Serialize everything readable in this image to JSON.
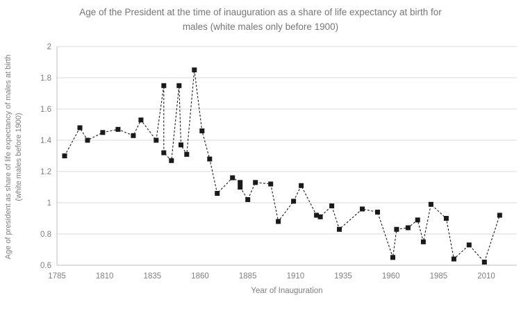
{
  "title": {
    "line1": "Age of the President at the time of inauguration as a share of life expectancy at birth for",
    "line2": "males (white males only before 1900)"
  },
  "chart_data": {
    "type": "line",
    "title": "Age of the President at the time of inauguration as a share of life expectancy at birth for males (white males only before 1900)",
    "xlabel": "Year of Inauguration",
    "ylabel_line1": "Age of president  as share of life expectancy of males at birth",
    "ylabel_line2": "(white males  before 1900)",
    "xlim": [
      1785,
      2026
    ],
    "ylim": [
      0.6,
      2.0
    ],
    "x_ticks": [
      "1785",
      "1810",
      "1835",
      "1860",
      "1885",
      "1910",
      "1935",
      "1960",
      "1985",
      "2010"
    ],
    "y_ticks": [
      "2",
      "1.8",
      "1.6",
      "1.4",
      "1.2",
      "1",
      "0.8",
      "0.6"
    ],
    "grid": "horizontal-only",
    "legend": "none",
    "line_style": "dashed",
    "marker_style": "filled-square",
    "points": [
      [
        1789,
        1.3
      ],
      [
        1797,
        1.48
      ],
      [
        1801,
        1.4
      ],
      [
        1809,
        1.45
      ],
      [
        1817,
        1.47
      ],
      [
        1825,
        1.43
      ],
      [
        1829,
        1.53
      ],
      [
        1837,
        1.4
      ],
      [
        1841,
        1.75
      ],
      [
        1841,
        1.32
      ],
      [
        1845,
        1.27
      ],
      [
        1849,
        1.75
      ],
      [
        1850,
        1.37
      ],
      [
        1853,
        1.31
      ],
      [
        1857,
        1.85
      ],
      [
        1861,
        1.46
      ],
      [
        1865,
        1.28
      ],
      [
        1869,
        1.06
      ],
      [
        1877,
        1.16
      ],
      [
        1881,
        1.13
      ],
      [
        1881,
        1.1
      ],
      [
        1885,
        1.02
      ],
      [
        1889,
        1.13
      ],
      [
        1897,
        1.12
      ],
      [
        1901,
        0.88
      ],
      [
        1909,
        1.01
      ],
      [
        1913,
        1.11
      ],
      [
        1921,
        0.92
      ],
      [
        1923,
        0.91
      ],
      [
        1929,
        0.98
      ],
      [
        1933,
        0.83
      ],
      [
        1945,
        0.96
      ],
      [
        1953,
        0.94
      ],
      [
        1961,
        0.65
      ],
      [
        1963,
        0.83
      ],
      [
        1969,
        0.84
      ],
      [
        1974,
        0.89
      ],
      [
        1977,
        0.75
      ],
      [
        1981,
        0.99
      ],
      [
        1989,
        0.9
      ],
      [
        1993,
        0.64
      ],
      [
        2001,
        0.73
      ],
      [
        2009,
        0.62
      ],
      [
        2017,
        0.92
      ]
    ],
    "colors": {
      "series": "#1a1a1a",
      "gridline": "#d9d9d9",
      "axis_line": "#bfbfbf",
      "tick_text": "#7f7f7f",
      "title_text": "#757575"
    }
  }
}
